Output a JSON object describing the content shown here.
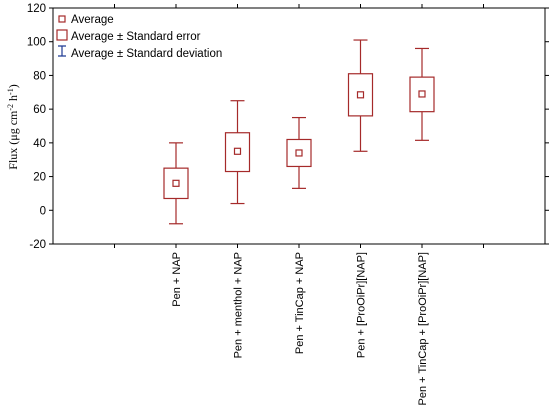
{
  "chart_data": {
    "type": "boxplot",
    "ylabel": {
      "prefix": "Flux (μg cm",
      "sup1": "-2",
      "mid": " h",
      "sup2": "-1",
      "suffix": ")"
    },
    "ylim": [
      -20,
      120
    ],
    "yticks": [
      "-20",
      "0",
      "20",
      "40",
      "60",
      "80",
      "100",
      "120"
    ],
    "grid": false,
    "legend_position": "top-left",
    "legend": {
      "average": "Average",
      "se": "Average ± Standard error",
      "sd": "Average ± Standard deviation"
    },
    "categories": [
      "Pen + NAP",
      "Pen + menthol + NAP",
      "Pen + TinCap + NAP",
      "Pen + [ProOiPr][NAP]",
      "Pen + TinCap + [ProOiPr][NAP]"
    ],
    "series": [
      {
        "mean": 16,
        "se_low": 7,
        "se_high": 25,
        "sd_low": -8,
        "sd_high": 40
      },
      {
        "mean": 35,
        "se_low": 23,
        "se_high": 46,
        "sd_low": 4,
        "sd_high": 65
      },
      {
        "mean": 34,
        "se_low": 26,
        "se_high": 42,
        "sd_low": 13,
        "sd_high": 55
      },
      {
        "mean": 68.5,
        "se_low": 56,
        "se_high": 81,
        "sd_low": 35,
        "sd_high": 101
      },
      {
        "mean": 69,
        "se_low": 58.5,
        "se_high": 79,
        "sd_low": 41.5,
        "sd_high": 96
      }
    ],
    "colors": {
      "box": "#a52a2a",
      "sd_legend": "#1f3a93",
      "axis": "#000000"
    }
  }
}
